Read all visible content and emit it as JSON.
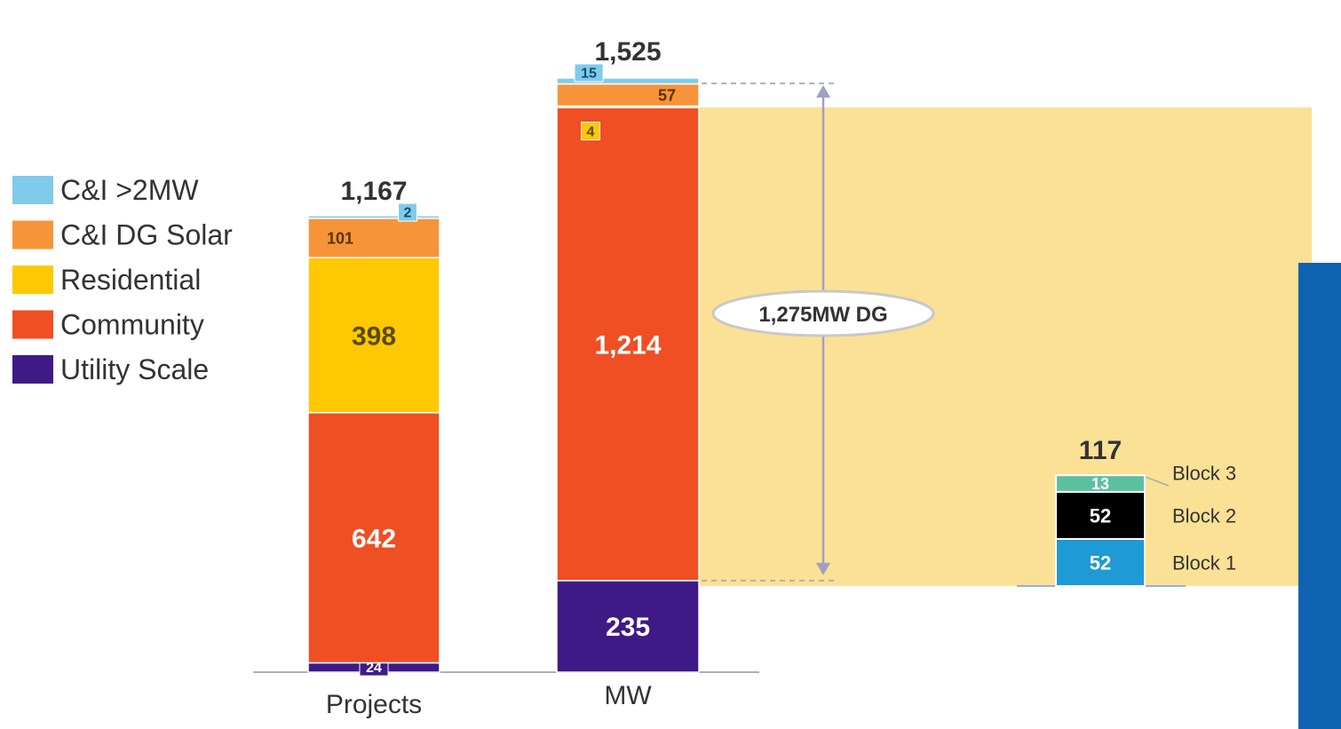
{
  "chart_data": {
    "type": "bar",
    "stacked": true,
    "ylim": [
      0,
      1600
    ],
    "legend": {
      "placement": "left",
      "entries": [
        {
          "name": "C&I >2MW",
          "color": "#7FCBEA"
        },
        {
          "name": "C&I DG Solar",
          "color": "#F7943A"
        },
        {
          "name": "Residential",
          "color": "#FFC800"
        },
        {
          "name": "Community",
          "color": "#F04E23"
        },
        {
          "name": "Utility Scale",
          "color": "#3F1A87"
        }
      ]
    },
    "categories": [
      "Projects",
      "MW"
    ],
    "totals": [
      "1,167",
      "1,525"
    ],
    "series": [
      {
        "name": "Utility Scale",
        "color": "#3F1A87",
        "values": [
          24,
          235
        ],
        "labels": [
          "24",
          "235"
        ]
      },
      {
        "name": "Community",
        "color": "#F04E23",
        "values": [
          642,
          1214
        ],
        "labels": [
          "642",
          "1,214"
        ]
      },
      {
        "name": "Residential",
        "color": "#FFC800",
        "values": [
          398,
          4
        ],
        "labels": [
          "398",
          "4"
        ]
      },
      {
        "name": "C&I DG Solar",
        "color": "#F7943A",
        "values": [
          101,
          57
        ],
        "labels": [
          "101",
          "57"
        ]
      },
      {
        "name": "C&I >2MW",
        "color": "#7FCBEA",
        "values": [
          2,
          15
        ],
        "labels": [
          "2",
          "15"
        ]
      }
    ],
    "blocks_bar": {
      "total": "117",
      "segments": [
        {
          "name": "Block 1",
          "value": 52,
          "label": "52",
          "color": "#1E9AD6"
        },
        {
          "name": "Block 2",
          "value": 52,
          "label": "52",
          "color": "#000000"
        },
        {
          "name": "Block 3",
          "value": 13,
          "label": "13",
          "color": "#5BC0A0"
        }
      ]
    },
    "callout": {
      "text": "1,275MW DG",
      "from_value": 235,
      "to_value": 1525,
      "highlight_color": "#FBE196"
    },
    "side_bar_color": "#0E63B0"
  }
}
